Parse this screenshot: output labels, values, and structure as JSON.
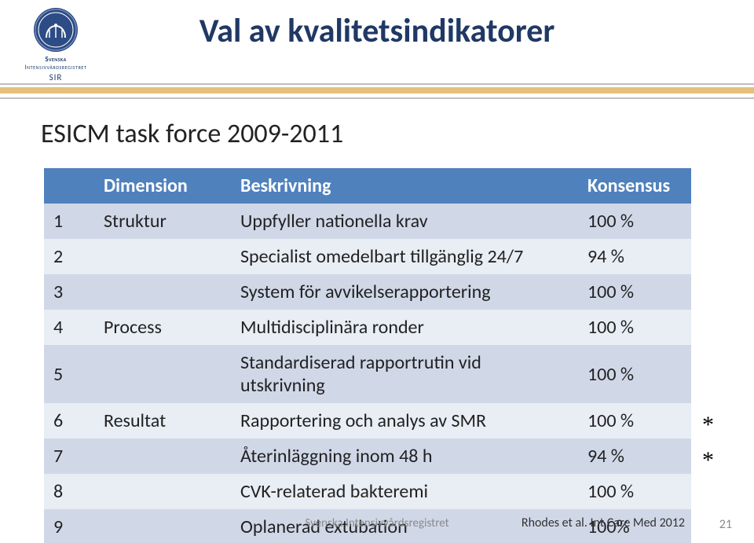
{
  "logo": {
    "line1": "Svenska",
    "line2": "Intensivvårdsregistret",
    "line3": "SIR",
    "seal_fill": "#2d4c86",
    "seal_detail": "#ffffff"
  },
  "title": "Val av kvalitetsindikatorer",
  "title_color": "#203864",
  "subtitle": "ESICM task force 2009-2011",
  "divider": {
    "border_color": "#bfbfbf",
    "fill_color": "#e5c07a"
  },
  "table": {
    "header_bg": "#4f81bd",
    "header_fg": "#ffffff",
    "row_odd_bg": "#d0d8e8",
    "row_even_bg": "#e9edf4",
    "text_color": "#222222",
    "fontsize": 24,
    "columns": [
      "",
      "Dimension",
      "Beskrivning",
      "Konsensus"
    ],
    "rows": [
      {
        "n": "1",
        "dim": "Struktur",
        "desc": "Uppfyller nationella krav",
        "kon": "100 %",
        "star": false
      },
      {
        "n": "2",
        "dim": "",
        "desc": "Specialist omedelbart tillgänglig 24/7",
        "kon": "94 %",
        "star": false
      },
      {
        "n": "3",
        "dim": "",
        "desc": "System för avvikelserapportering",
        "kon": "100 %",
        "star": false
      },
      {
        "n": "4",
        "dim": "Process",
        "desc": "Multidisciplinära ronder",
        "kon": "100 %",
        "star": false
      },
      {
        "n": "5",
        "dim": "",
        "desc": "Standardiserad rapportrutin vid utskrivning",
        "kon": "100 %",
        "star": false
      },
      {
        "n": "6",
        "dim": "Resultat",
        "desc": "Rapportering och analys av SMR",
        "kon": "100 %",
        "star": true
      },
      {
        "n": "7",
        "dim": "",
        "desc": "Återinläggning inom 48 h",
        "kon": "94 %",
        "star": true
      },
      {
        "n": "8",
        "dim": "",
        "desc": "CVK-relaterad bakteremi",
        "kon": "100 %",
        "star": false
      },
      {
        "n": "9",
        "dim": "",
        "desc": "Oplanerad extubation",
        "kon": "100%",
        "star": false
      }
    ]
  },
  "star_glyph": "*",
  "footer": {
    "left": "Svenska Intensivvårdsregistret",
    "cite": "Rhodes et al. Int Care Med 2012",
    "page": "21"
  }
}
